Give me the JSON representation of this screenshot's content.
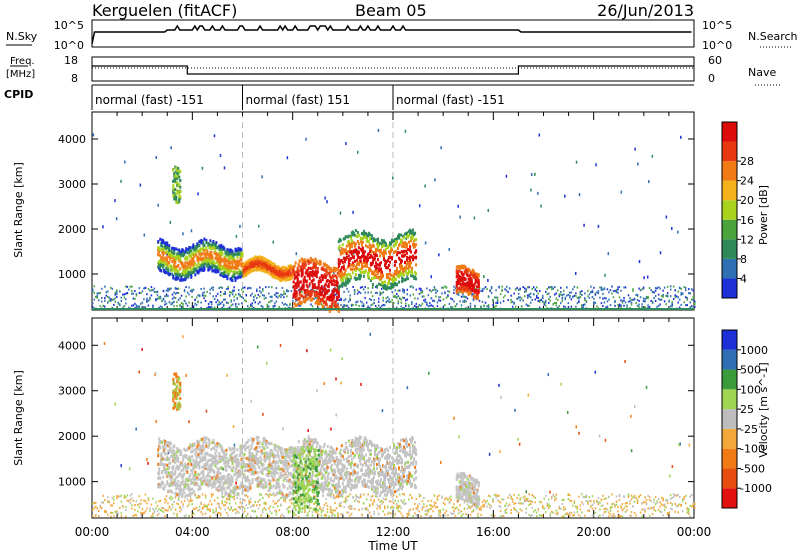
{
  "header": {
    "station": "Kerguelen (fitACF)",
    "beam": "Beam 05",
    "date": "26/Jun/2013"
  },
  "left_labels": {
    "nsky": "N.Sky",
    "freq": "Freq.",
    "mhz": "[MHz]",
    "cpid": "CPID"
  },
  "right_labels": {
    "nsearch": "N.Search",
    "nave": "Nave"
  },
  "scales": {
    "nsky_top": "10^5",
    "nsky_bottom": "10^0",
    "freq_top": "18",
    "freq_bottom": "8",
    "nave_top": "60",
    "nave_bottom": "0"
  },
  "cpid_segments": [
    {
      "label": "normal (fast) -151",
      "start": 0,
      "end": 6
    },
    {
      "label": "normal (fast) 151",
      "start": 6,
      "end": 12
    },
    {
      "label": "normal (fast) -151",
      "start": 12,
      "end": 24
    }
  ],
  "colors": {
    "power": [
      "#1d2fd6",
      "#2f6fb3",
      "#2f8a5a",
      "#4aa33b",
      "#a8d21c",
      "#f3b21a",
      "#f07a14",
      "#e83812",
      "#dd0b0b"
    ],
    "velocity": [
      "#e21010",
      "#e84d10",
      "#f07a14",
      "#f2a83a",
      "#bdbdbd",
      "#9ed552",
      "#3a9b3a",
      "#2f6fb3",
      "#1d2fd6"
    ],
    "scatter_grey": "#c4c4c4"
  },
  "chart_data": [
    {
      "type": "heatmap",
      "name": "power_panel",
      "ylabel": "Slant Range [km]",
      "colorbar_label": "Power [dB]",
      "colorbar_ticks": [
        "4",
        "8",
        "12",
        "16",
        "20",
        "24",
        "28"
      ],
      "ylim": [
        200,
        4600
      ],
      "yticks": [
        1000,
        2000,
        3000,
        4000
      ],
      "xlim": [
        0,
        24
      ],
      "features": [
        {
          "t0": 2.6,
          "t1": 6.0,
          "r0": 1000,
          "r1": 1700,
          "level": "green-orange"
        },
        {
          "t0": 6.0,
          "t1": 8.0,
          "r0": 1000,
          "r1": 1300,
          "level": "orange"
        },
        {
          "t0": 8.0,
          "t1": 9.8,
          "r0": 300,
          "r1": 1300,
          "level": "red"
        },
        {
          "t0": 9.8,
          "t1": 12.9,
          "r0": 800,
          "r1": 1900,
          "level": "orange-red"
        },
        {
          "t0": 14.5,
          "t1": 15.4,
          "r0": 500,
          "r1": 1100,
          "level": "red"
        },
        {
          "t0": 3.2,
          "t1": 3.5,
          "r0": 2700,
          "r1": 3500,
          "level": "green-yellow"
        }
      ]
    },
    {
      "type": "heatmap",
      "name": "velocity_panel",
      "ylabel": "Slant Range [km]",
      "colorbar_label": "Velocity [m s^-1]",
      "colorbar_ticks": [
        "-1000",
        "-500",
        "-100",
        "-25",
        "25",
        "100",
        "500",
        "1000"
      ],
      "ylim": [
        200,
        4600
      ],
      "yticks": [
        1000,
        2000,
        3000,
        4000
      ],
      "xlim": [
        0,
        24
      ],
      "features": [
        {
          "t0": 2.6,
          "t1": 12.9,
          "r0": 800,
          "r1": 1900,
          "level": "grey"
        },
        {
          "t0": 8.0,
          "t1": 9.0,
          "r0": 300,
          "r1": 1700,
          "level": "green"
        },
        {
          "t0": 14.5,
          "t1": 15.4,
          "r0": 500,
          "r1": 1100,
          "level": "grey"
        },
        {
          "t0": 3.2,
          "t1": 3.5,
          "r0": 2700,
          "r1": 3500,
          "level": "orange-green"
        }
      ]
    }
  ],
  "x_axis": {
    "label": "Time UT",
    "ticks": [
      "00:00",
      "04:00",
      "08:00",
      "12:00",
      "16:00",
      "20:00",
      "00:00"
    ]
  }
}
